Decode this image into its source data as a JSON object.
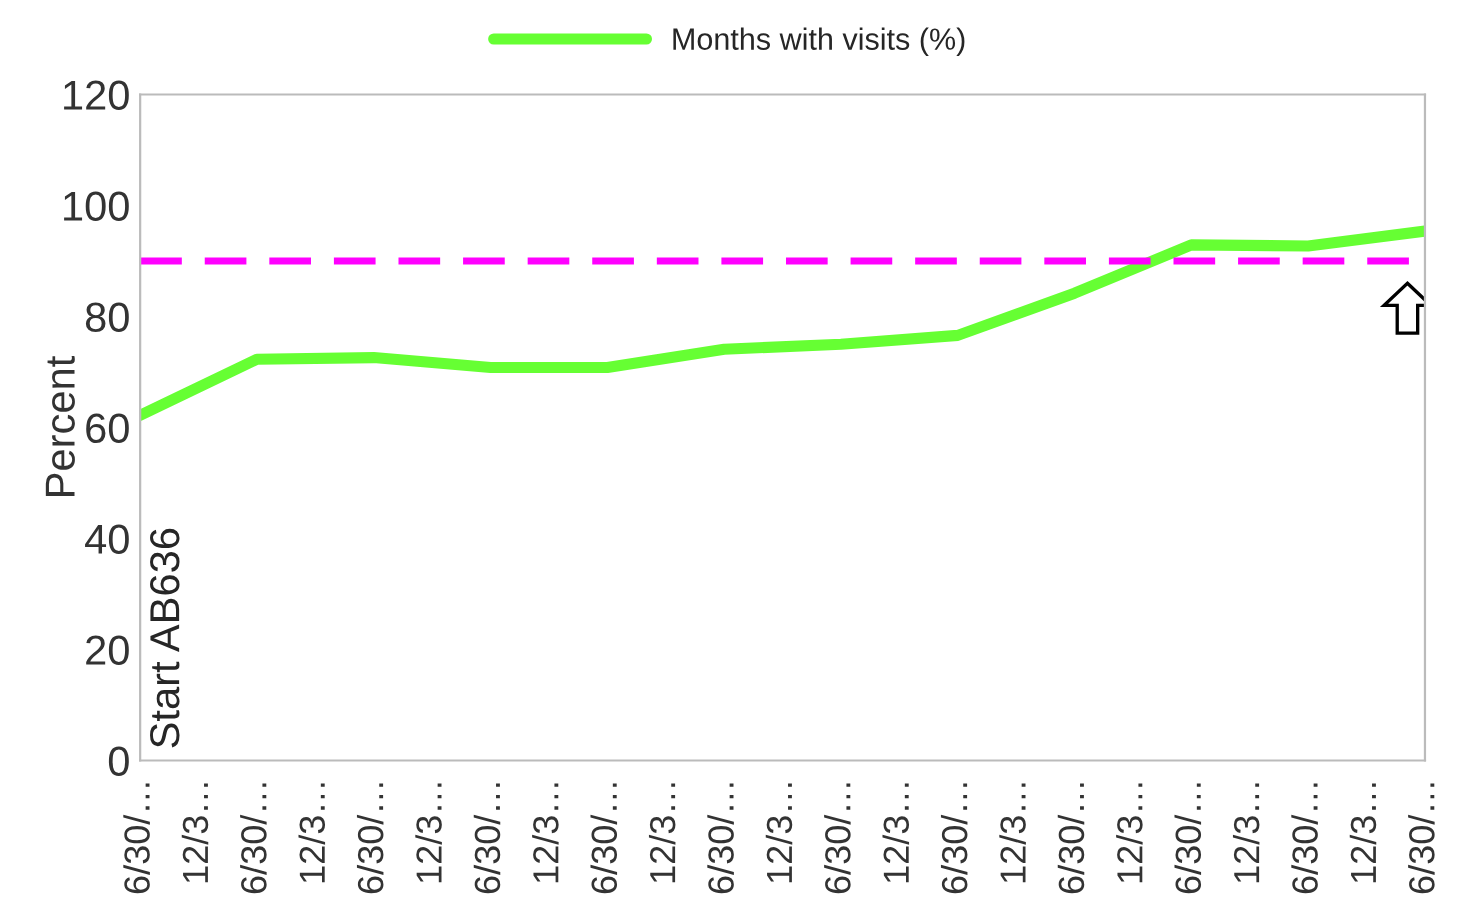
{
  "chart_data": {
    "type": "line",
    "categories": [
      "6/30/…",
      "12/3…",
      "6/30/…",
      "12/3…",
      "6/30/…",
      "12/3…",
      "6/30/…",
      "12/3…",
      "6/30/…",
      "12/3…",
      "6/30/…",
      "12/3…",
      "6/30/…",
      "12/3…",
      "6/30/…",
      "12/3…",
      "6/30/…",
      "12/3…",
      "6/30/…",
      "12/3…",
      "6/30/…",
      "12/3…",
      "6/30/…"
    ],
    "series": [
      {
        "name": "Months with visits (%)",
        "color": "#66ff33",
        "values": [
          62.2,
          null,
          72.3,
          null,
          72.6,
          null,
          70.8,
          null,
          70.8,
          null,
          74.1,
          null,
          75,
          null,
          76.6,
          null,
          84.2,
          null,
          92.9,
          null,
          92.7,
          null,
          95.4
        ]
      }
    ],
    "ylabel": "Percent",
    "ylim": [
      0,
      120
    ],
    "yticks": [
      0,
      20,
      40,
      60,
      80,
      100,
      120
    ],
    "ref_lines": [
      {
        "axis": "y",
        "value": 90,
        "color": "#ff00ff",
        "line_style": "dashed"
      }
    ],
    "annotations": [
      "Start AB636"
    ],
    "legend": "top",
    "grid": false,
    "marker": "none",
    "line_style": "solid"
  }
}
